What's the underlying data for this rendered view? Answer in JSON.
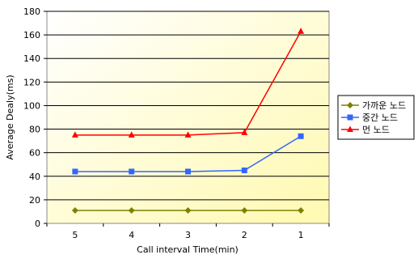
{
  "chart_data": {
    "type": "line",
    "categories": [
      "5",
      "4",
      "3",
      "2",
      "1"
    ],
    "xlabel": "Call interval Time(min)",
    "ylabel": "Average Dealy(ms)",
    "ylim": [
      0,
      180
    ],
    "yticks": [
      0,
      20,
      40,
      60,
      80,
      100,
      120,
      140,
      160,
      180
    ],
    "grid": true,
    "legend_position": "right",
    "series": [
      {
        "name": "가까운 노드",
        "values": [
          11,
          11,
          11,
          11,
          11
        ],
        "color": "#808000",
        "marker": "diamond"
      },
      {
        "name": "중간 노드",
        "values": [
          44,
          44,
          44,
          45,
          74
        ],
        "color": "#3366ff",
        "marker": "square"
      },
      {
        "name": "먼 노드",
        "values": [
          75,
          75,
          75,
          77,
          163
        ],
        "color": "#ff0000",
        "marker": "triangle"
      }
    ],
    "plot_background": [
      "#ffffff",
      "#fff9b0"
    ]
  }
}
